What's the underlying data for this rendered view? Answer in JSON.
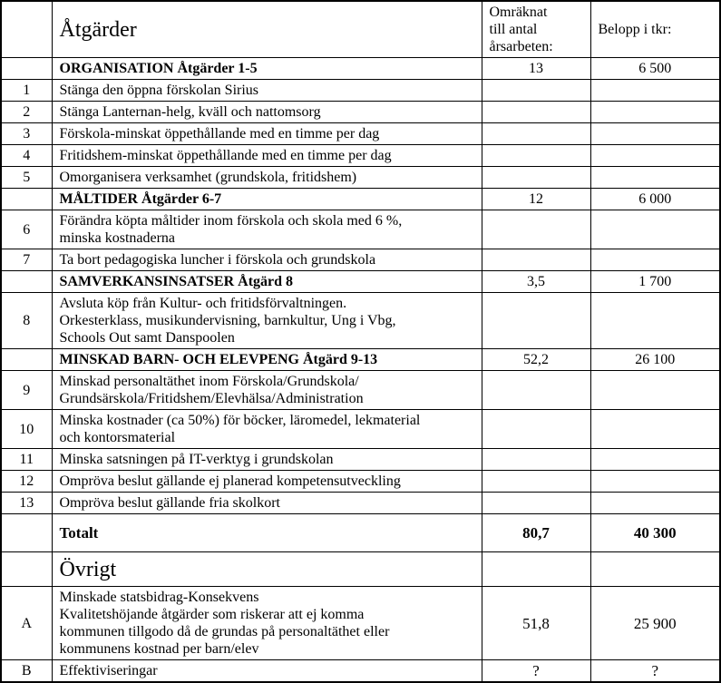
{
  "table": {
    "header": {
      "col_empty": "",
      "col_atgarder": "Åtgärder",
      "col_arsarbeten": "Omräknat\ntill antal\nårsarbeten:",
      "col_belopp": "Belopp i tkr:"
    },
    "rows": [
      {
        "num": "",
        "label": "ORGANISATION Åtgärder 1-5",
        "arsarbeten": "13",
        "belopp": "6 500"
      },
      {
        "num": "1",
        "label": "Stänga den öppna förskolan Sirius",
        "arsarbeten": "",
        "belopp": ""
      },
      {
        "num": "2",
        "label": "Stänga Lanternan-helg, kväll och nattomsorg",
        "arsarbeten": "",
        "belopp": ""
      },
      {
        "num": "3",
        "label": "Förskola-minskat öppethållande med en timme per dag",
        "arsarbeten": "",
        "belopp": ""
      },
      {
        "num": "4",
        "label": "Fritidshem-minskat öppethållande med en timme per dag",
        "arsarbeten": "",
        "belopp": ""
      },
      {
        "num": "5",
        "label": "Omorganisera verksamhet (grundskola, fritidshem)",
        "arsarbeten": "",
        "belopp": ""
      },
      {
        "num": "",
        "label": "MÅLTIDER Åtgärder 6-7",
        "arsarbeten": "12",
        "belopp": "6 000"
      },
      {
        "num": "6",
        "label": "Förändra köpta måltider inom förskola och skola med 6 %,\nminska kostnaderna",
        "arsarbeten": "",
        "belopp": ""
      },
      {
        "num": "7",
        "label": "Ta bort pedagogiska luncher i förskola och grundskola",
        "arsarbeten": "",
        "belopp": ""
      },
      {
        "num": "",
        "label": "SAMVERKANSINSATSER Åtgärd 8",
        "arsarbeten": "3,5",
        "belopp": "1 700"
      },
      {
        "num": "8",
        "label": "Avsluta köp från Kultur- och fritidsförvaltningen.\nOrkesterklass, musikundervisning, barnkultur, Ung i Vbg,\nSchools Out samt Danspoolen",
        "arsarbeten": "",
        "belopp": ""
      },
      {
        "num": "",
        "label": "MINSKAD BARN- OCH ELEVPENG Åtgärd 9-13",
        "arsarbeten": "52,2",
        "belopp": "26 100"
      },
      {
        "num": "9",
        "label": "Minskad personaltäthet inom Förskola/Grundskola/\nGrundsärskola/Fritidshem/Elevhälsa/Administration",
        "arsarbeten": "",
        "belopp": ""
      },
      {
        "num": "10",
        "label": "Minska kostnader (ca 50%) för böcker, läromedel, lekmaterial\noch kontorsmaterial",
        "arsarbeten": "",
        "belopp": ""
      },
      {
        "num": "11",
        "label": "Minska satsningen på IT-verktyg i grundskolan",
        "arsarbeten": "",
        "belopp": ""
      },
      {
        "num": "12",
        "label": "Ompröva beslut gällande ej planerad kompetensutveckling",
        "arsarbeten": "",
        "belopp": ""
      },
      {
        "num": "13",
        "label": "Ompröva beslut gällande fria skolkort",
        "arsarbeten": "",
        "belopp": ""
      },
      {
        "num": "",
        "label": "Totalt",
        "arsarbeten": "80,7",
        "belopp": "40 300"
      },
      {
        "num": "",
        "label": "Övrigt",
        "arsarbeten": "",
        "belopp": ""
      },
      {
        "num": "A",
        "label": "Minskade statsbidrag-Konsekvens\nKvalitetshöjande åtgärder som riskerar att ej komma\nkommunen tillgodo då de grundas på personaltäthet eller\nkommunens kostnad per barn/elev",
        "arsarbeten": "51,8",
        "belopp": "25 900"
      },
      {
        "num": "B",
        "label": "Effektiviseringar",
        "arsarbeten": "?",
        "belopp": "?"
      }
    ]
  }
}
